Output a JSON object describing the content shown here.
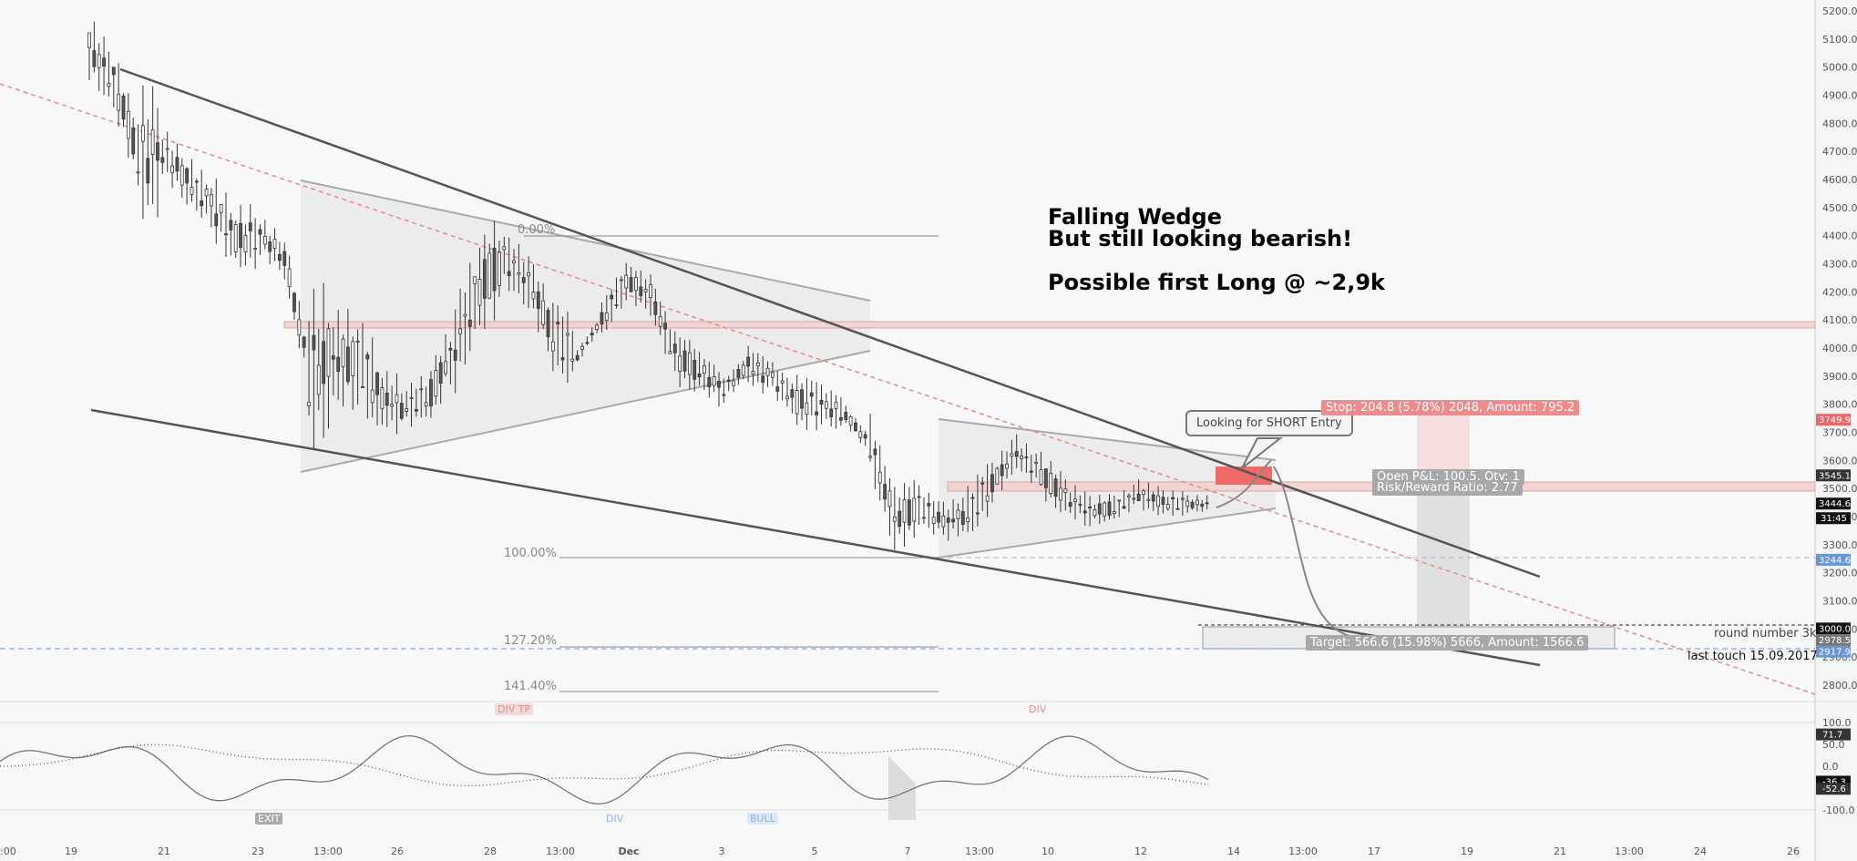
{
  "annotations": {
    "title_line1": "Falling Wedge",
    "title_line2": "But still looking bearish!",
    "title_line3": "Possible first Long @ ~2,9k",
    "callout": "Looking for SHORT Entry",
    "stop_label": "Stop: 204.8 (5.78%) 2048, Amount: 795.2",
    "pnl_label": "Open P&L: 100.5, Qty: 1",
    "rr_label": "Risk/Reward Ratio: 2.77",
    "target_label": "Target: 566.6 (15.98%) 5666, Amount: 1566.6",
    "round_number": "round number 3k",
    "last_touch": "last touch 15.09.2017"
  },
  "fib_levels": [
    {
      "label": "0.00%"
    },
    {
      "label": "100.00%"
    },
    {
      "label": "127.20%"
    },
    {
      "label": "141.40%"
    }
  ],
  "price_tags": {
    "stop": "3749.9",
    "entry_top": "3545.1",
    "last_price": "3444.6",
    "countdown": "31:45",
    "fib_100": "3244.6",
    "round": "3000.0",
    "target": "2978.5",
    "last_touch": "2917.9"
  },
  "indicator": {
    "labels": {
      "exit": "EXIT",
      "div1": "DIV",
      "bull": "BULL",
      "div_top1": "DIV TP",
      "div_top2": "DIV"
    },
    "tags": {
      "upper": "71.7",
      "lower1": "-36.3",
      "lower2": "-52.6"
    }
  },
  "chart_data": {
    "type": "candlestick",
    "symbol_hint": "BCH",
    "price_axis": {
      "ticks": [
        5200,
        5100,
        5000,
        4900,
        4800,
        4700,
        4600,
        4500,
        4400,
        4300,
        4200,
        4100,
        4000,
        3900,
        3800,
        3700,
        3600,
        3500,
        3400,
        3300,
        3200,
        3100,
        3000,
        2900,
        2800
      ],
      "ylim": [
        2750,
        5250
      ]
    },
    "indicator_axis": {
      "ticks": [
        100.0,
        50.0,
        0.0,
        -50.0,
        -100.0
      ],
      "ylim": [
        -115,
        110
      ]
    },
    "time_axis": {
      "ticks": [
        ":00",
        "19",
        "21",
        "23",
        "13:00",
        "26",
        "28",
        "13:00",
        "Dec",
        "3",
        "5",
        "7",
        "13:00",
        "10",
        "12",
        "14",
        "13:00",
        "17",
        "19",
        "21",
        "13:00",
        "24",
        "26"
      ]
    },
    "candles_approx": [
      [
        5200,
        4940
      ],
      [
        5080,
        4820
      ],
      [
        4960,
        4420
      ],
      [
        4800,
        4600
      ],
      [
        4700,
        4500
      ],
      [
        4640,
        4380
      ],
      [
        4520,
        4260
      ],
      [
        4480,
        4320
      ],
      [
        4420,
        4230
      ],
      [
        4240,
        3600
      ],
      [
        4160,
        3760
      ],
      [
        4140,
        3780
      ],
      [
        3940,
        3700
      ],
      [
        3880,
        3700
      ],
      [
        3960,
        3720
      ],
      [
        4200,
        3820
      ],
      [
        4420,
        4020
      ],
      [
        4430,
        4200
      ],
      [
        4360,
        4120
      ],
      [
        4200,
        3900
      ],
      [
        4000,
        3940
      ],
      [
        4180,
        4020
      ],
      [
        4320,
        4160
      ],
      [
        4280,
        4100
      ],
      [
        4080,
        3860
      ],
      [
        4000,
        3840
      ],
      [
        3900,
        3800
      ],
      [
        4020,
        3860
      ],
      [
        3960,
        3820
      ],
      [
        3920,
        3700
      ],
      [
        3880,
        3720
      ],
      [
        3800,
        3720
      ],
      [
        3780,
        3530
      ],
      [
        3520,
        3260
      ],
      [
        3520,
        3360
      ],
      [
        3460,
        3300
      ],
      [
        3520,
        3300
      ],
      [
        3600,
        3440
      ],
      [
        3700,
        3560
      ],
      [
        3640,
        3460
      ],
      [
        3540,
        3400
      ],
      [
        3480,
        3360
      ],
      [
        3480,
        3380
      ],
      [
        3540,
        3420
      ],
      [
        3500,
        3400
      ],
      [
        3480,
        3410
      ]
    ]
  }
}
